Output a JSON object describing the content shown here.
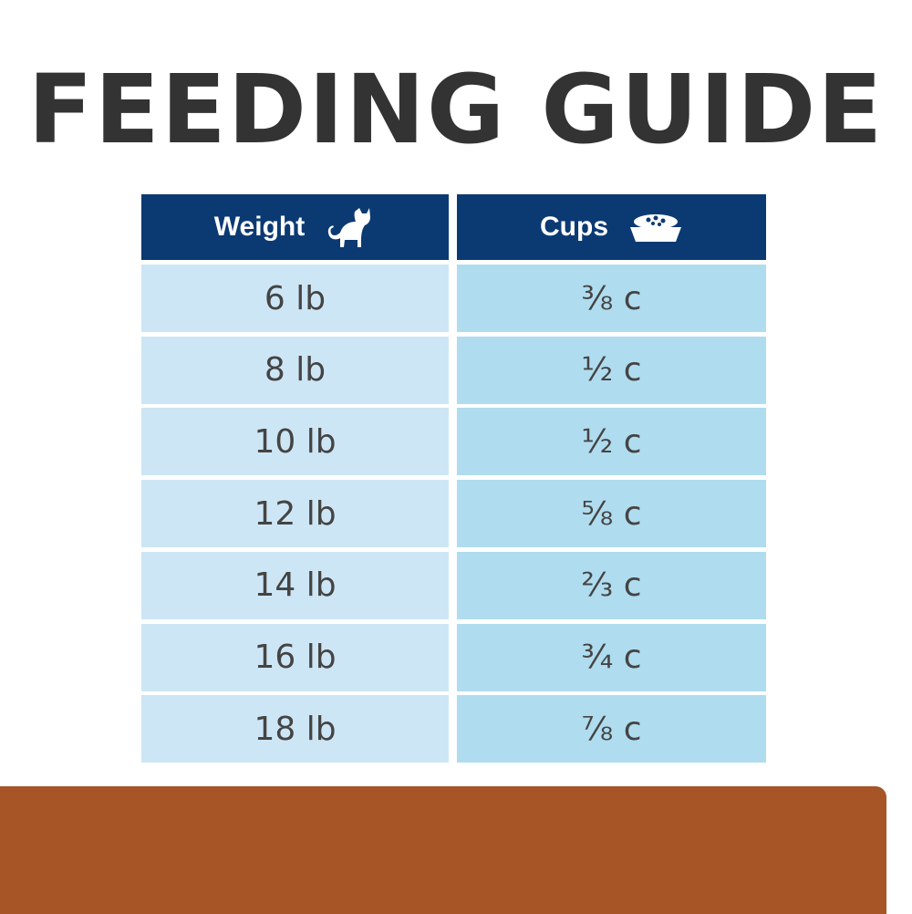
{
  "header": {
    "title": "FEEDING GUIDE"
  },
  "table": {
    "columns": [
      "Weight",
      "Cups"
    ],
    "rows": [
      [
        "6 lb",
        "⅜ c"
      ],
      [
        "8 lb",
        "½ c"
      ],
      [
        "10 lb",
        "½ c"
      ],
      [
        "12 lb",
        "⅝ c"
      ],
      [
        "14 lb",
        "⅔ c"
      ],
      [
        "16 lb",
        "¾ c"
      ],
      [
        "18 lb",
        "⅞ c"
      ]
    ]
  }
}
